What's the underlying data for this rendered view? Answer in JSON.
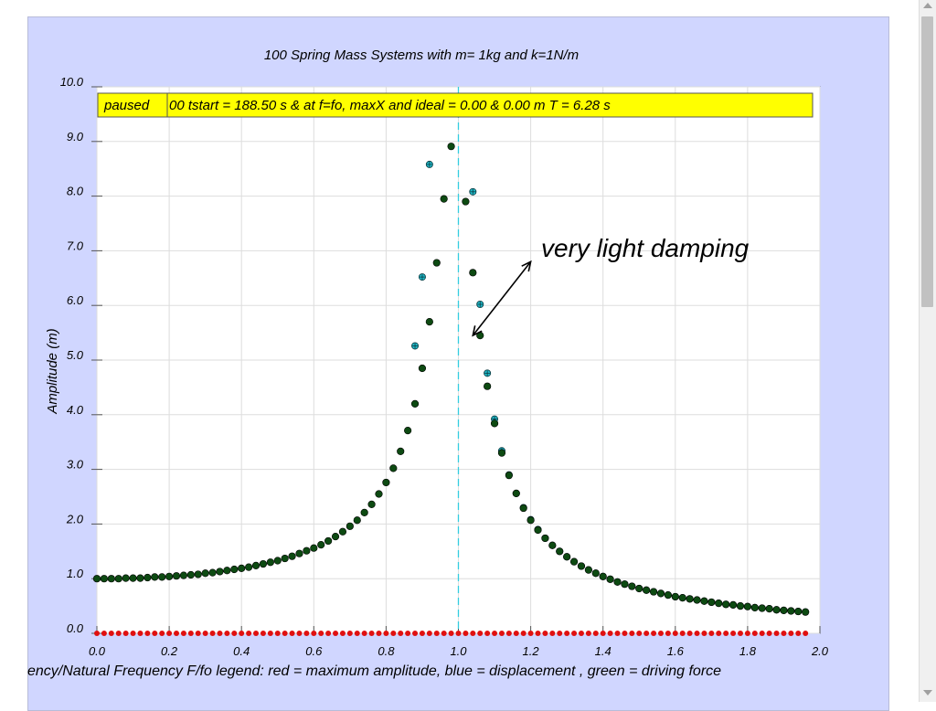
{
  "chart_data": {
    "type": "scatter",
    "title": "100 Spring Mass Systems with m= 1kg and k=1N/m",
    "xlabel": "ency/Natural Frequency F/fo legend: red = maximum amplitude, blue = displacement , green = driving force",
    "ylabel": "Amplitude (m)",
    "xlim": [
      0.0,
      2.0
    ],
    "ylim": [
      0.0,
      10.0
    ],
    "x_ticks": [
      "0.0",
      "0.2",
      "0.4",
      "0.6",
      "0.8",
      "1.0",
      "1.2",
      "1.4",
      "1.6",
      "1.8",
      "2.0"
    ],
    "y_ticks": [
      "0.0",
      "1.0",
      "2.0",
      "3.0",
      "4.0",
      "5.0",
      "6.0",
      "7.0",
      "8.0",
      "9.0",
      "10.0"
    ],
    "grid": true,
    "resonance_line_x": 1.0,
    "status_button": "paused",
    "status_text": "00 tstart = 188.50 s & at f=fo, maxX and ideal = 0.00 & 0.00 m T = 6.28 s",
    "annotation": {
      "text": "very light damping",
      "arrow_from": [
        1.04,
        5.45
      ],
      "arrow_to": [
        1.2,
        6.8
      ]
    },
    "series": [
      {
        "color": "#1fb8c8",
        "x": [
          0.88,
          0.9,
          0.92,
          1.04,
          1.06,
          1.08,
          1.1,
          1.12,
          1.14,
          1.16,
          1.18,
          1.2,
          1.22,
          1.24,
          1.26,
          1.28,
          1.3,
          1.32,
          1.34,
          1.36,
          1.38,
          1.4,
          1.42,
          1.44,
          1.46,
          1.48,
          1.5,
          1.52,
          1.54,
          1.56,
          1.58,
          1.6,
          1.62,
          1.64,
          1.66,
          1.68,
          1.7,
          1.72,
          1.74,
          1.76,
          1.78,
          1.8,
          1.82,
          1.84,
          1.86,
          1.88,
          1.9,
          1.92,
          1.94,
          1.96
        ],
        "y": [
          5.26,
          6.52,
          8.58,
          8.08,
          6.02,
          4.76,
          3.92,
          3.34,
          2.9,
          2.56,
          2.3,
          2.08,
          1.9,
          1.74,
          1.61,
          1.5,
          1.4,
          1.31,
          1.23,
          1.16,
          1.1,
          1.04,
          0.99,
          0.94,
          0.9,
          0.86,
          0.82,
          0.79,
          0.76,
          0.73,
          0.7,
          0.67,
          0.65,
          0.63,
          0.61,
          0.59,
          0.57,
          0.55,
          0.53,
          0.52,
          0.5,
          0.49,
          0.47,
          0.46,
          0.45,
          0.43,
          0.42,
          0.41,
          0.4,
          0.39
        ]
      },
      {
        "color": "#0d4a12",
        "x": [
          0.0,
          0.02,
          0.04,
          0.06,
          0.08,
          0.1,
          0.12,
          0.14,
          0.16,
          0.18,
          0.2,
          0.22,
          0.24,
          0.26,
          0.28,
          0.3,
          0.32,
          0.34,
          0.36,
          0.38,
          0.4,
          0.42,
          0.44,
          0.46,
          0.48,
          0.5,
          0.52,
          0.54,
          0.56,
          0.58,
          0.6,
          0.62,
          0.64,
          0.66,
          0.68,
          0.7,
          0.72,
          0.74,
          0.76,
          0.78,
          0.8,
          0.82,
          0.84,
          0.86,
          0.88,
          0.9,
          0.92,
          0.94,
          0.96,
          0.98,
          1.02,
          1.04,
          1.06,
          1.08,
          1.1,
          1.12,
          1.14,
          1.16,
          1.18,
          1.2,
          1.22,
          1.24,
          1.26,
          1.28,
          1.3,
          1.32,
          1.34,
          1.36,
          1.38,
          1.4,
          1.42,
          1.44,
          1.46,
          1.48,
          1.5,
          1.52,
          1.54,
          1.56,
          1.58,
          1.6,
          1.62,
          1.64,
          1.66,
          1.68,
          1.7,
          1.72,
          1.74,
          1.76,
          1.78,
          1.8,
          1.82,
          1.84,
          1.86,
          1.88,
          1.9,
          1.92,
          1.94,
          1.96
        ],
        "y": [
          1.0,
          1.0,
          1.0,
          1.0,
          1.01,
          1.01,
          1.01,
          1.02,
          1.03,
          1.03,
          1.04,
          1.05,
          1.06,
          1.07,
          1.08,
          1.1,
          1.11,
          1.13,
          1.15,
          1.17,
          1.19,
          1.21,
          1.24,
          1.27,
          1.3,
          1.33,
          1.37,
          1.41,
          1.46,
          1.51,
          1.56,
          1.62,
          1.69,
          1.77,
          1.86,
          1.96,
          2.07,
          2.21,
          2.36,
          2.55,
          2.76,
          3.02,
          3.33,
          3.71,
          4.2,
          4.85,
          5.7,
          6.78,
          7.95,
          8.91,
          7.9,
          6.6,
          5.45,
          4.52,
          3.84,
          3.3,
          2.89,
          2.56,
          2.29,
          2.07,
          1.89,
          1.74,
          1.61,
          1.5,
          1.4,
          1.31,
          1.23,
          1.16,
          1.1,
          1.04,
          0.99,
          0.94,
          0.9,
          0.86,
          0.82,
          0.79,
          0.76,
          0.73,
          0.7,
          0.67,
          0.65,
          0.63,
          0.61,
          0.59,
          0.57,
          0.55,
          0.53,
          0.52,
          0.5,
          0.49,
          0.47,
          0.46,
          0.45,
          0.43,
          0.42,
          0.41,
          0.4,
          0.39
        ]
      },
      {
        "color": "#e01010",
        "x": [
          0.0,
          0.02,
          0.04,
          0.06,
          0.08,
          0.1,
          0.12,
          0.14,
          0.16,
          0.18,
          0.2,
          0.22,
          0.24,
          0.26,
          0.28,
          0.3,
          0.32,
          0.34,
          0.36,
          0.38,
          0.4,
          0.42,
          0.44,
          0.46,
          0.48,
          0.5,
          0.52,
          0.54,
          0.56,
          0.58,
          0.6,
          0.62,
          0.64,
          0.66,
          0.68,
          0.7,
          0.72,
          0.74,
          0.76,
          0.78,
          0.8,
          0.82,
          0.84,
          0.86,
          0.88,
          0.9,
          0.92,
          0.94,
          0.96,
          0.98,
          1.0,
          1.02,
          1.04,
          1.06,
          1.08,
          1.1,
          1.12,
          1.14,
          1.16,
          1.18,
          1.2,
          1.22,
          1.24,
          1.26,
          1.28,
          1.3,
          1.32,
          1.34,
          1.36,
          1.38,
          1.4,
          1.42,
          1.44,
          1.46,
          1.48,
          1.5,
          1.52,
          1.54,
          1.56,
          1.58,
          1.6,
          1.62,
          1.64,
          1.66,
          1.68,
          1.7,
          1.72,
          1.74,
          1.76,
          1.78,
          1.8,
          1.82,
          1.84,
          1.86,
          1.88,
          1.9,
          1.92,
          1.94,
          1.96
        ],
        "y": [
          0,
          0,
          0,
          0,
          0,
          0,
          0,
          0,
          0,
          0,
          0,
          0,
          0,
          0,
          0,
          0,
          0,
          0,
          0,
          0,
          0,
          0,
          0,
          0,
          0,
          0,
          0,
          0,
          0,
          0,
          0,
          0,
          0,
          0,
          0,
          0,
          0,
          0,
          0,
          0,
          0,
          0,
          0,
          0,
          0,
          0,
          0,
          0,
          0,
          0,
          0,
          0,
          0,
          0,
          0,
          0,
          0,
          0,
          0,
          0,
          0,
          0,
          0,
          0,
          0,
          0,
          0,
          0,
          0,
          0,
          0,
          0,
          0,
          0,
          0,
          0,
          0,
          0,
          0,
          0,
          0,
          0,
          0,
          0,
          0,
          0,
          0,
          0,
          0,
          0,
          0,
          0,
          0,
          0,
          0,
          0,
          0,
          0,
          0
        ]
      }
    ]
  }
}
